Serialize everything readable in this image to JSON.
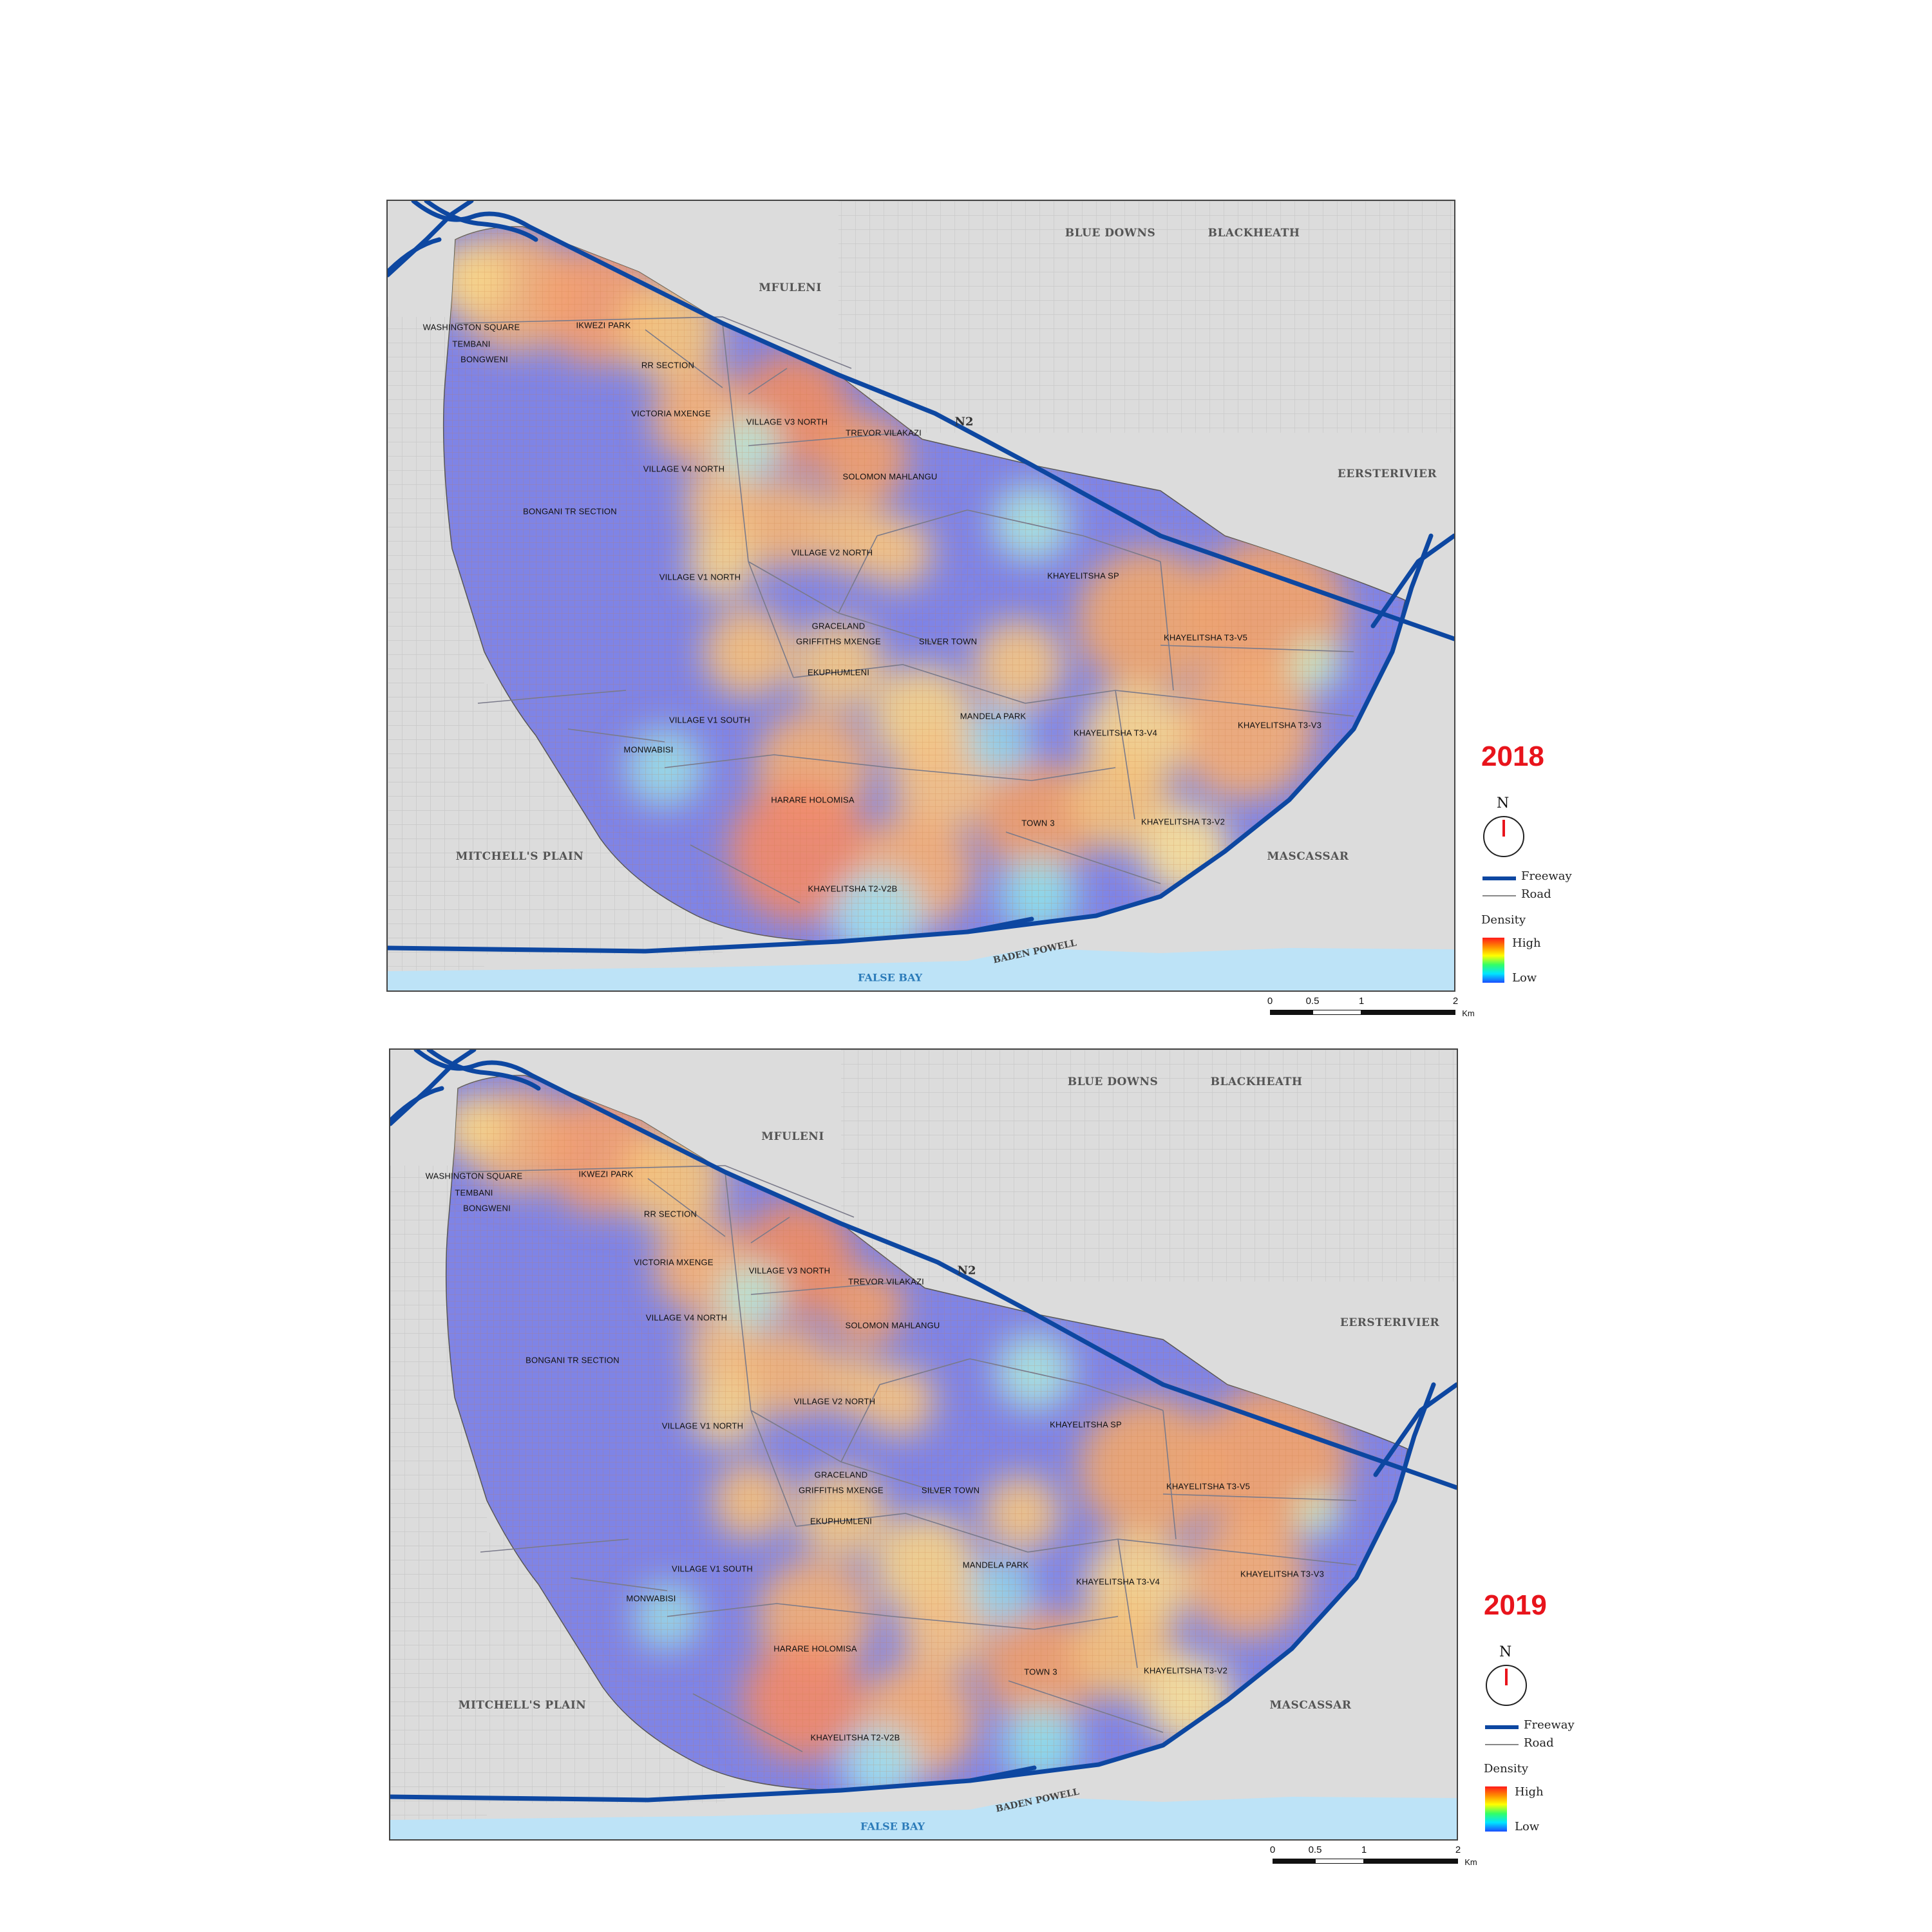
{
  "colors": {
    "freeway": "#0d47a1",
    "road": "#888888",
    "sea": "#bde3f7",
    "land": "#dcdcdc",
    "low_density": "#7f84e6",
    "year": "#e8141c"
  },
  "maps": [
    {
      "year": "2018",
      "places": {
        "blue_downs": "BLUE DOWNS",
        "blackheath": "BLACKHEATH",
        "mfuleni": "MFULENI",
        "eersterivier": "EERSTERIVIER",
        "mitchells_plain": "MITCHELL'S PLAIN",
        "mascassar": "MASCASSAR",
        "false_bay": "FALSE BAY",
        "baden_powell": "BADEN POWELL",
        "n2": "N2"
      },
      "sections": {
        "washington_square": "WASHINGTON SQUARE",
        "tembani": "TEMBANI",
        "bongweni": "BONGWENI",
        "ikwezi_park": "IKWEZI PARK",
        "rr_section": "RR SECTION",
        "victoria_mxenge": "VICTORIA MXENGE",
        "village_v3_north": "VILLAGE V3 NORTH",
        "trevor_vilakazi": "TREVOR VILAKAZI",
        "village_v4_north": "VILLAGE V4 NORTH",
        "solomon_mahlangu": "SOLOMON MAHLANGU",
        "bongani_tr_section": "BONGANI TR SECTION",
        "village_v2_north": "VILLAGE V2 NORTH",
        "village_v1_north": "VILLAGE V1 NORTH",
        "khayelitsha_sp": "KHAYELITSHA SP",
        "graceland": "GRACELAND",
        "griffiths_mxenge": "GRIFFITHS MXENGE",
        "silver_town": "SILVER TOWN",
        "khayelitsha_t3_v5": "KHAYELITSHA T3-V5",
        "ekuphumleni": "EKUPHUMLENI",
        "village_v1_south": "VILLAGE V1 SOUTH",
        "mandela_park": "MANDELA PARK",
        "khayelitsha_t3_v4": "KHAYELITSHA T3-V4",
        "khayelitsha_t3_v3": "KHAYELITSHA T3-V3",
        "monwabisi": "MONWABISI",
        "harare_holomisa": "HARARE HOLOMISA",
        "town_3": "TOWN 3",
        "khayelitsha_t3_v2": "KHAYELITSHA T3-V2",
        "khayelitsha_t2_v2b": "KHAYELITSHA T2-V2B"
      },
      "legend": {
        "north": "N",
        "freeway": "Freeway",
        "road": "Road",
        "density": "Density",
        "high": "High",
        "low": "Low"
      },
      "scale": {
        "t0": "0",
        "t1": "0.5",
        "t2": "1",
        "t3": "2",
        "unit": "Km"
      }
    },
    {
      "year": "2019",
      "places": {
        "blue_downs": "BLUE DOWNS",
        "blackheath": "BLACKHEATH",
        "mfuleni": "MFULENI",
        "eersterivier": "EERSTERIVIER",
        "mitchells_plain": "MITCHELL'S PLAIN",
        "mascassar": "MASCASSAR",
        "false_bay": "FALSE BAY",
        "baden_powell": "BADEN POWELL",
        "n2": "N2"
      },
      "sections": {
        "washington_square": "WASHINGTON SQUARE",
        "tembani": "TEMBANI",
        "bongweni": "BONGWENI",
        "ikwezi_park": "IKWEZI PARK",
        "rr_section": "RR SECTION",
        "victoria_mxenge": "VICTORIA MXENGE",
        "village_v3_north": "VILLAGE V3 NORTH",
        "trevor_vilakazi": "TREVOR VILAKAZI",
        "village_v4_north": "VILLAGE V4 NORTH",
        "solomon_mahlangu": "SOLOMON MAHLANGU",
        "bongani_tr_section": "BONGANI TR SECTION",
        "village_v2_north": "VILLAGE V2 NORTH",
        "village_v1_north": "VILLAGE V1 NORTH",
        "khayelitsha_sp": "KHAYELITSHA SP",
        "graceland": "GRACELAND",
        "griffiths_mxenge": "GRIFFITHS MXENGE",
        "silver_town": "SILVER TOWN",
        "khayelitsha_t3_v5": "KHAYELITSHA T3-V5",
        "ekuphumleni": "EKUPHUMLENI",
        "village_v1_south": "VILLAGE V1 SOUTH",
        "mandela_park": "MANDELA PARK",
        "khayelitsha_t3_v4": "KHAYELITSHA T3-V4",
        "khayelitsha_t3_v3": "KHAYELITSHA T3-V3",
        "monwabisi": "MONWABISI",
        "harare_holomisa": "HARARE HOLOMISA",
        "town_3": "TOWN 3",
        "khayelitsha_t3_v2": "KHAYELITSHA T3-V2",
        "khayelitsha_t2_v2b": "KHAYELITSHA T2-V2B"
      },
      "legend": {
        "north": "N",
        "freeway": "Freeway",
        "road": "Road",
        "density": "Density",
        "high": "High",
        "low": "Low"
      },
      "scale": {
        "t0": "0",
        "t1": "0.5",
        "t2": "1",
        "t3": "2",
        "unit": "Km"
      }
    }
  ]
}
